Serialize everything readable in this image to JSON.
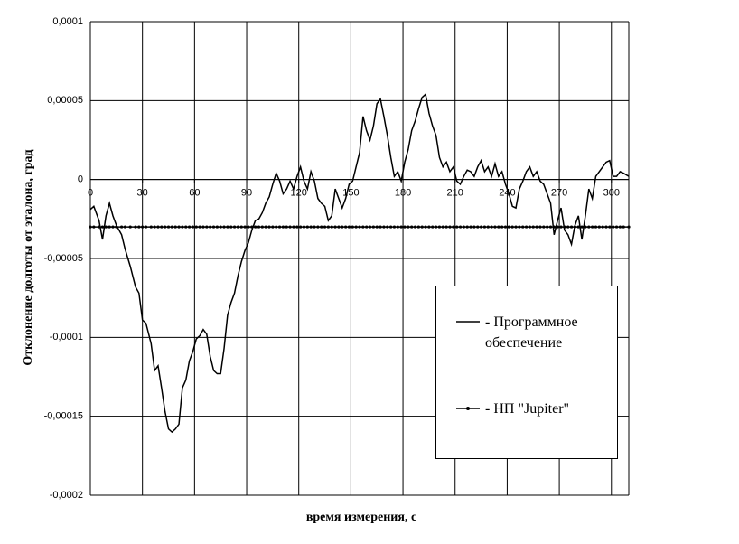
{
  "chart_data": {
    "type": "line",
    "xlabel": "время измерения, с",
    "ylabel": "Отклонение долготы от эталона, град",
    "x": [
      0,
      2,
      5,
      7,
      9,
      11,
      13,
      15,
      18,
      20,
      23,
      26,
      28,
      30,
      32,
      35,
      37,
      39,
      41,
      43,
      45,
      47,
      49,
      51,
      53,
      55,
      57,
      59,
      61,
      63,
      65,
      67,
      69,
      71,
      73,
      75,
      77,
      79,
      81,
      83,
      85,
      87,
      89,
      91,
      93,
      95,
      97,
      99,
      101,
      103,
      105,
      107,
      109,
      111,
      113,
      115,
      117,
      119,
      121,
      123,
      125,
      127,
      129,
      131,
      133,
      135,
      137,
      139,
      141,
      143,
      145,
      147,
      149,
      151,
      153,
      155,
      157,
      159,
      161,
      163,
      165,
      167,
      169,
      171,
      173,
      175,
      177,
      179,
      181,
      183,
      185,
      187,
      189,
      191,
      193,
      195,
      197,
      199,
      201,
      203,
      205,
      207,
      209,
      211,
      213,
      215,
      217,
      219,
      221,
      223,
      225,
      227,
      229,
      231,
      233,
      235,
      237,
      239,
      241,
      243,
      245,
      247,
      249,
      251,
      253,
      255,
      257,
      259,
      261,
      263,
      265,
      267,
      269,
      271,
      273,
      275,
      277,
      279,
      281,
      283,
      285,
      287,
      289,
      291,
      293,
      295,
      297,
      299,
      301,
      303,
      305,
      307,
      310
    ],
    "series": [
      {
        "name": "- Программное обеспечение",
        "color": "#000000",
        "values": [
          -1.9e-05,
          -1.7e-05,
          -2.6e-05,
          -3.8e-05,
          -2.3e-05,
          -1.5e-05,
          -2.3e-05,
          -2.9e-05,
          -3.5e-05,
          -4.4e-05,
          -5.5e-05,
          -6.8e-05,
          -7.2e-05,
          -8.9e-05,
          -9.1e-05,
          -0.000104,
          -0.000121,
          -0.000118,
          -0.000132,
          -0.000147,
          -0.000158,
          -0.00016,
          -0.000158,
          -0.000155,
          -0.000132,
          -0.000127,
          -0.000115,
          -0.000109,
          -0.000101,
          -9.9e-05,
          -9.5e-05,
          -9.8e-05,
          -0.000112,
          -0.000121,
          -0.000123,
          -0.000123,
          -0.000107,
          -8.6e-05,
          -7.8e-05,
          -7.2e-05,
          -6.1e-05,
          -5.2e-05,
          -4.5e-05,
          -4e-05,
          -3.2e-05,
          -2.6e-05,
          -2.5e-05,
          -2.1e-05,
          -1.5e-05,
          -1.1e-05,
          -3e-06,
          4e-06,
          -1e-06,
          -9e-06,
          -6e-06,
          -1e-06,
          -6e-06,
          2e-06,
          8e-06,
          -1e-06,
          -6e-06,
          5e-06,
          -1e-06,
          -1.2e-05,
          -1.5e-05,
          -1.7e-05,
          -2.6e-05,
          -2.3e-05,
          -6e-06,
          -1.2e-05,
          -1.8e-05,
          -1.2e-05,
          -3e-06,
          -1e-06,
          8e-06,
          1.7e-05,
          4e-05,
          3.1e-05,
          2.5e-05,
          3.4e-05,
          4.8e-05,
          5.1e-05,
          4e-05,
          2.8e-05,
          1.4e-05,
          2e-06,
          5e-06,
          -1e-06,
          1.1e-05,
          1.9e-05,
          3.1e-05,
          3.7e-05,
          4.5e-05,
          5.2e-05,
          5.4e-05,
          4.2e-05,
          3.4e-05,
          2.8e-05,
          1.4e-05,
          8e-06,
          1.1e-05,
          5e-06,
          8e-06,
          -1e-06,
          -3e-06,
          2e-06,
          6e-06,
          5e-06,
          2e-06,
          8e-06,
          1.2e-05,
          5e-06,
          8e-06,
          2e-06,
          1e-05,
          2e-06,
          5e-06,
          -3e-06,
          -9e-06,
          -1.7e-05,
          -1.8e-05,
          -6e-06,
          -1e-06,
          5e-06,
          8e-06,
          2e-06,
          5e-06,
          -1e-06,
          -3e-06,
          -9e-06,
          -1.5e-05,
          -3.5e-05,
          -2.6e-05,
          -1.8e-05,
          -3.2e-05,
          -3.5e-05,
          -4.1e-05,
          -2.9e-05,
          -2.3e-05,
          -3.8e-05,
          -2.3e-05,
          -6e-06,
          -1.2e-05,
          2e-06,
          5e-06,
          8e-06,
          1.1e-05,
          1.2e-05,
          2e-06,
          2e-06,
          5e-06,
          4e-06,
          2e-06
        ]
      },
      {
        "name": "- НП \"Jupiter\"",
        "color": "#000000",
        "marker": "dot",
        "values": [
          -3e-05,
          -3e-05,
          -3e-05,
          -3e-05,
          -3e-05,
          -3e-05,
          -3e-05,
          -3e-05,
          -3e-05,
          -3e-05,
          -3e-05,
          -3e-05,
          -3e-05,
          -3e-05,
          -3e-05,
          -3e-05,
          -3e-05,
          -3e-05,
          -3e-05,
          -3e-05,
          -3e-05,
          -3e-05,
          -3e-05,
          -3e-05,
          -3e-05,
          -3e-05,
          -3e-05,
          -3e-05,
          -3e-05,
          -3e-05,
          -3e-05,
          -3e-05,
          -3e-05,
          -3e-05,
          -3e-05,
          -3e-05,
          -3e-05,
          -3e-05,
          -3e-05,
          -3e-05,
          -3e-05,
          -3e-05,
          -3e-05,
          -3e-05,
          -3e-05,
          -3e-05,
          -3e-05,
          -3e-05,
          -3e-05,
          -3e-05,
          -3e-05,
          -3e-05,
          -3e-05,
          -3e-05,
          -3e-05,
          -3e-05,
          -3e-05,
          -3e-05,
          -3e-05,
          -3e-05,
          -3e-05,
          -3e-05,
          -3e-05,
          -3e-05,
          -3e-05,
          -3e-05,
          -3e-05,
          -3e-05,
          -3e-05,
          -3e-05,
          -3e-05,
          -3e-05,
          -3e-05,
          -3e-05,
          -3e-05,
          -3e-05,
          -3e-05,
          -3e-05,
          -3e-05,
          -3e-05,
          -3e-05,
          -3e-05,
          -3e-05,
          -3e-05,
          -3e-05,
          -3e-05,
          -3e-05,
          -3e-05,
          -3e-05,
          -3e-05,
          -3e-05,
          -3e-05,
          -3e-05,
          -3e-05,
          -3e-05,
          -3e-05,
          -3e-05,
          -3e-05,
          -3e-05,
          -3e-05,
          -3e-05,
          -3e-05,
          -3e-05,
          -3e-05,
          -3e-05,
          -3e-05,
          -3e-05,
          -3e-05,
          -3e-05,
          -3e-05,
          -3e-05,
          -3e-05,
          -3e-05,
          -3e-05,
          -3e-05,
          -3e-05,
          -3e-05,
          -3e-05,
          -3e-05,
          -3e-05,
          -3e-05,
          -3e-05,
          -3e-05,
          -3e-05,
          -3e-05,
          -3e-05,
          -3e-05,
          -3e-05,
          -3e-05,
          -3e-05,
          -3e-05,
          -3e-05,
          -3e-05,
          -3e-05,
          -3e-05,
          -3e-05,
          -3e-05,
          -3e-05,
          -3e-05,
          -3e-05,
          -3e-05,
          -3e-05,
          -3e-05,
          -3e-05,
          -3e-05,
          -3e-05,
          -3e-05,
          -3e-05,
          -3e-05,
          -3e-05,
          -3e-05,
          -3e-05,
          -3e-05
        ]
      }
    ],
    "xlim": [
      0,
      310
    ],
    "xticks": [
      0,
      30,
      60,
      90,
      120,
      150,
      180,
      210,
      240,
      270,
      300
    ],
    "ylim": [
      -0.0002,
      0.0001
    ],
    "yticks": [
      {
        "value": -0.0002,
        "label": "-0,0002"
      },
      {
        "value": -0.00015,
        "label": "-0,00015"
      },
      {
        "value": -0.0001,
        "label": "-0,0001"
      },
      {
        "value": -5e-05,
        "label": "-0,00005"
      },
      0,
      {
        "value": 5e-05,
        "label": "0,00005"
      },
      {
        "value": 0.0001,
        "label": "0,0001"
      }
    ],
    "grid": true
  }
}
